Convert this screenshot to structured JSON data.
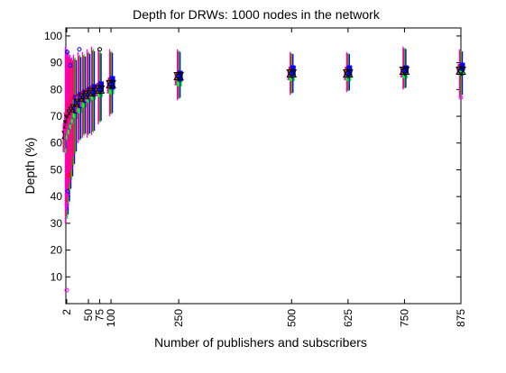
{
  "chart_data": {
    "type": "scatter",
    "title": "Depth for DRWs: 1000 nodes in the network",
    "xlabel": "Number of publishers and subscribers",
    "ylabel": "Depth (%)",
    "xlim": [
      0,
      875
    ],
    "ylim": [
      0,
      103
    ],
    "x_ticks": [
      2,
      50,
      75,
      100,
      250,
      500,
      625,
      750,
      875
    ],
    "y_ticks": [
      10,
      20,
      30,
      40,
      50,
      60,
      70,
      80,
      90,
      100
    ],
    "grid": false,
    "legend": "none",
    "colors": {
      "red": "#ff0000",
      "green": "#00ff00",
      "blue": "#0000ff",
      "magenta": "#ff00ff",
      "black": "#000000"
    },
    "groups": [
      {
        "x": 2,
        "mean": 63,
        "min": 30,
        "max": 96,
        "q1": 57,
        "q3": 68
      },
      {
        "x": 5,
        "mean": 67,
        "min": 35,
        "max": 95,
        "q1": 62,
        "q3": 72
      },
      {
        "x": 8,
        "mean": 69,
        "min": 40,
        "max": 94,
        "q1": 64,
        "q3": 74
      },
      {
        "x": 12,
        "mean": 71,
        "min": 45,
        "max": 93,
        "q1": 66,
        "q3": 75
      },
      {
        "x": 16,
        "mean": 72,
        "min": 50,
        "max": 92,
        "q1": 68,
        "q3": 76
      },
      {
        "x": 20,
        "mean": 73,
        "min": 55,
        "max": 93,
        "q1": 70,
        "q3": 77
      },
      {
        "x": 30,
        "mean": 75,
        "min": 60,
        "max": 94,
        "q1": 72,
        "q3": 78
      },
      {
        "x": 40,
        "mean": 77,
        "min": 62,
        "max": 94,
        "q1": 74,
        "q3": 79
      },
      {
        "x": 50,
        "mean": 78,
        "min": 62,
        "max": 95,
        "q1": 76,
        "q3": 80
      },
      {
        "x": 60,
        "mean": 79,
        "min": 63,
        "max": 96,
        "q1": 77,
        "q3": 81
      },
      {
        "x": 75,
        "mean": 80,
        "min": 67,
        "max": 95,
        "q1": 78,
        "q3": 82
      },
      {
        "x": 100,
        "mean": 82,
        "min": 70,
        "max": 95,
        "q1": 79,
        "q3": 84
      },
      {
        "x": 250,
        "mean": 85,
        "min": 76,
        "max": 95,
        "q1": 82,
        "q3": 86
      },
      {
        "x": 500,
        "mean": 86,
        "min": 78,
        "max": 94,
        "q1": 84,
        "q3": 88
      },
      {
        "x": 625,
        "mean": 86,
        "min": 79,
        "max": 94,
        "q1": 84,
        "q3": 88
      },
      {
        "x": 750,
        "mean": 87,
        "min": 80,
        "max": 96,
        "q1": 85,
        "q3": 88
      },
      {
        "x": 875,
        "mean": 87,
        "min": 77,
        "max": 95,
        "q1": 86,
        "q3": 89
      }
    ],
    "outliers": [
      {
        "x": 2,
        "y": 5,
        "color": "magenta"
      },
      {
        "x": 2,
        "y": 37,
        "color": "magenta"
      },
      {
        "x": 4,
        "y": 42,
        "color": "blue"
      },
      {
        "x": 6,
        "y": 48,
        "color": "red"
      },
      {
        "x": 3,
        "y": 94,
        "color": "blue"
      },
      {
        "x": 10,
        "y": 89,
        "color": "blue"
      },
      {
        "x": 30,
        "y": 95,
        "color": "blue"
      },
      {
        "x": 75,
        "y": 95,
        "color": "black"
      },
      {
        "x": 875,
        "y": 77,
        "color": "magenta"
      }
    ]
  }
}
